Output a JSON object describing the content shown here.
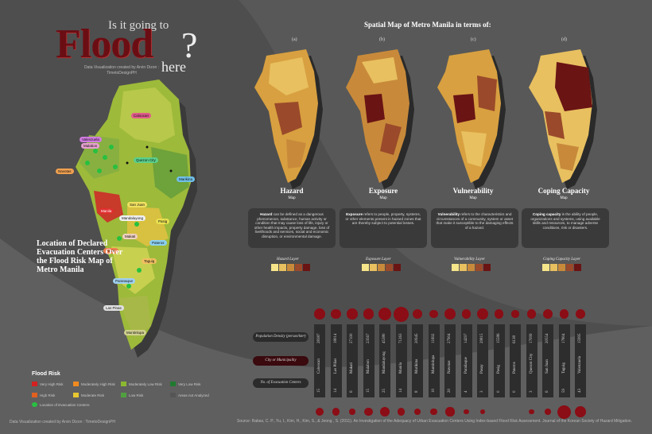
{
  "title": {
    "question_top": "Is it going to",
    "flood": "Flood",
    "here": "here",
    "question_mark": "?",
    "credit": "Data Visualization created by Arvin Dizon : TimetoDesignPH"
  },
  "main_map": {
    "caption": "Location of Declared Evacuation Centers Over the Flood Risk Map of Metro Manila",
    "city_tags": [
      {
        "label": "Caloocan",
        "color": "#e05a8c"
      },
      {
        "label": "Valenzuela",
        "color": "#d07be0"
      },
      {
        "label": "Malabon",
        "color": "#e8a0d0"
      },
      {
        "label": "Navotas",
        "color": "#f0a050"
      },
      {
        "label": "Quezon City",
        "color": "#5ad08c"
      },
      {
        "label": "Marikina",
        "color": "#70c0e8"
      },
      {
        "label": "Manila",
        "color": "#e03030"
      },
      {
        "label": "San Juan",
        "color": "#f0e060"
      },
      {
        "label": "Mandaluyong",
        "color": "#f0f0f0"
      },
      {
        "label": "Pasig",
        "color": "#e8e050"
      },
      {
        "label": "Makati",
        "color": "#f0d0c0"
      },
      {
        "label": "Pateros",
        "color": "#8cd0f0"
      },
      {
        "label": "Pasay",
        "color": "#f08050"
      },
      {
        "label": "Taguig",
        "color": "#f0c060"
      },
      {
        "label": "Paranaque",
        "color": "#a0d0f0"
      },
      {
        "label": "Las Pinas",
        "color": "#e0e0e0"
      },
      {
        "label": "Muntinlupa",
        "color": "#d0d090"
      }
    ]
  },
  "legend": {
    "title": "Flood Risk",
    "items": [
      {
        "label": "Very High Risk",
        "color": "#d42020"
      },
      {
        "label": "Moderately High Risk",
        "color": "#f08a20"
      },
      {
        "label": "Moderately Low Risk",
        "color": "#8ab830"
      },
      {
        "label": "Very Low Risk",
        "color": "#207a30"
      },
      {
        "label": "High Risk",
        "color": "#e06020"
      },
      {
        "label": "Moderate Risk",
        "color": "#e8c830"
      },
      {
        "label": "Low Risk",
        "color": "#50a040"
      },
      {
        "label": "Areas not Analyzed",
        "color": "#555555"
      },
      {
        "label": "Location of Evacuation Centers",
        "color": "#28c040"
      }
    ]
  },
  "spatial": {
    "title": "Spatial Map of Metro Manila in terms of:",
    "panels": [
      {
        "letter": "(a)",
        "name": "Hazard",
        "sub": "Map",
        "layer": "Hazard Layer",
        "definition_term": "Hazard",
        "definition": " can be defined as a dangerous phenomenon, substance, human activity or condition that may cause loss of life, injury or other health impacts, property damage, loss of livelihoods and services, social and economic disruption, or environmental damage.",
        "swatches": [
          "#f6e58a",
          "#e8c060",
          "#c88a3a",
          "#9a4a2a",
          "#6a1414"
        ]
      },
      {
        "letter": "(b)",
        "name": "Exposure",
        "sub": "Map",
        "layer": "Exposure Layer",
        "definition_term": "Exposure",
        "definition": " refers to people, property, systems, or other elements present in hazard zones that are thereby subject to potential losses.",
        "swatches": [
          "#f6e58a",
          "#e8c060",
          "#c88a3a",
          "#9a4a2a",
          "#6a1414"
        ]
      },
      {
        "letter": "(c)",
        "name": "Vulnerability",
        "sub": "Map",
        "layer": "Vulnerability Layer",
        "definition_term": "Vulnerability",
        "definition": " refers to the characteristics and circumstances of a community, system or asset that make it susceptible to the damaging effects of a hazard.",
        "swatches": [
          "#f6e58a",
          "#e8c060",
          "#c88a3a",
          "#9a4a2a",
          "#6a1414"
        ]
      },
      {
        "letter": "(d)",
        "name": "Coping Capacity",
        "sub": "Map",
        "layer": "Coping Capacity Layer",
        "definition_term": "Coping capacity",
        "definition": " is the ability of people, organizations and systems, using available skills and resources, to manage adverse conditions, risk or disasters.",
        "swatches": [
          "#f6e58a",
          "#e8c060",
          "#c88a3a",
          "#9a4a2a",
          "#6a1414"
        ]
      }
    ]
  },
  "table": {
    "row_density": "Population Density (person/km²)",
    "row_city": "City or Municipality",
    "row_centers": "No. of Evacuation Centers",
    "cities": [
      {
        "name": "Caloocan",
        "density": "28387",
        "centers": "15"
      },
      {
        "name": "Las Piñas",
        "density": "18014",
        "centers": "14"
      },
      {
        "name": "Makati",
        "density": "27100",
        "centers": "6"
      },
      {
        "name": "Malabon",
        "density": "23567",
        "centers": "15"
      },
      {
        "name": "Mandaluyong",
        "density": "45380",
        "centers": "25"
      },
      {
        "name": "Manila",
        "density": "71263",
        "centers": "14"
      },
      {
        "name": "Marikina",
        "density": "20945",
        "centers": "8"
      },
      {
        "name": "Muntinlupa",
        "density": "11692",
        "centers": "10"
      },
      {
        "name": "Navotas",
        "density": "27904",
        "centers": "20"
      },
      {
        "name": "Parañaque",
        "density": "14297",
        "centers": "4"
      },
      {
        "name": "Pasay",
        "density": "29815",
        "centers": "3"
      },
      {
        "name": "Pasig",
        "density": "15586",
        "centers": "0"
      },
      {
        "name": "Pateros",
        "density": "6138",
        "centers": "0"
      },
      {
        "name": "Quezon City",
        "density": "17099",
        "centers": "3"
      },
      {
        "name": "San Juan",
        "density": "20554",
        "centers": "6"
      },
      {
        "name": "Taguig",
        "density": "17804",
        "centers": "59"
      },
      {
        "name": "Valenzuela",
        "density": "15995",
        "centers": "43"
      }
    ]
  },
  "footer": {
    "credit": "Data Visualization created by Arvin Dizon : TimetoDesignPH",
    "source": "Source: Rabas, C. P., Yu, I., Kim, H., Kim, S., & Jeong , S. (2011). An Investigation of the Adequacy of Urban Evacuation Centers Using Index-based Flood Risk Assessment. Journal of the Korean Society of Hazard Mitigation."
  }
}
